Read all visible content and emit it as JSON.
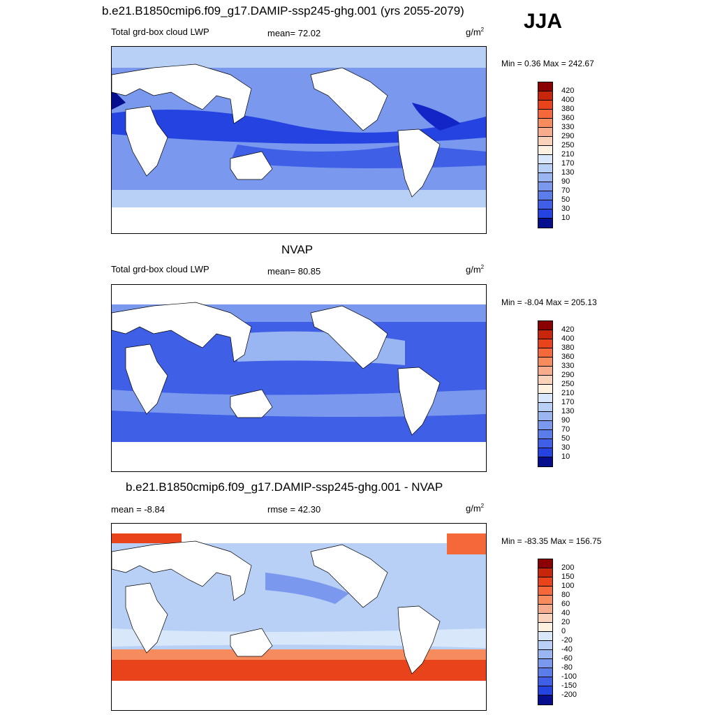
{
  "season": "JJA",
  "units_label": "g/m",
  "units_sup": "2",
  "panels": [
    {
      "title": "b.e21.B1850cmip6.f09_g17.DAMIP-ssp245-ghg.001 (yrs 2055-2079)",
      "left_label": "Total grd-box cloud LWP",
      "center_label": "mean=  72.02",
      "minmax": "Min =   0.36 Max = 242.67",
      "colorbar": {
        "colors": [
          "#8b0000",
          "#c8260a",
          "#e8431a",
          "#f4683a",
          "#f68b5e",
          "#f7ad8d",
          "#fad2ba",
          "#fff0e0",
          "#d8e8fa",
          "#b8cff6",
          "#9ab6f2",
          "#7a99ee",
          "#5a7de9",
          "#3f5fe6",
          "#2443e0",
          "#1226c8",
          "#050e8c"
        ],
        "labels": [
          "420",
          "400",
          "380",
          "360",
          "330",
          "290",
          "250",
          "210",
          "170",
          "130",
          "90",
          "70",
          "50",
          "30",
          "10"
        ]
      }
    },
    {
      "title": "NVAP",
      "left_label": "Total grd-box cloud LWP",
      "center_label": "mean=  80.85",
      "minmax": "Min =  -8.04 Max = 205.13",
      "colorbar": {
        "colors": [
          "#8b0000",
          "#c8260a",
          "#e8431a",
          "#f4683a",
          "#f68b5e",
          "#f7ad8d",
          "#fad2ba",
          "#fff0e0",
          "#d8e8fa",
          "#b8cff6",
          "#9ab6f2",
          "#7a99ee",
          "#5a7de9",
          "#3f5fe6",
          "#2443e0",
          "#1226c8",
          "#050e8c"
        ],
        "labels": [
          "420",
          "400",
          "380",
          "360",
          "330",
          "290",
          "250",
          "210",
          "170",
          "130",
          "90",
          "70",
          "50",
          "30",
          "10"
        ]
      }
    },
    {
      "title": "b.e21.B1850cmip6.f09_g17.DAMIP-ssp245-ghg.001 - NVAP",
      "left_label": "mean =  -8.84",
      "center_label": "rmse =  42.30",
      "minmax": "Min = -83.35 Max = 156.75",
      "colorbar": {
        "colors": [
          "#8b0000",
          "#c8260a",
          "#e8431a",
          "#f4683a",
          "#f68b5e",
          "#f7ad8d",
          "#fad2ba",
          "#fff0e0",
          "#d8e8fa",
          "#b8cff6",
          "#9ab6f2",
          "#7a99ee",
          "#5a7de9",
          "#3f5fe6",
          "#2443e0",
          "#1226c8",
          "#050e8c"
        ],
        "labels": [
          "200",
          "150",
          "100",
          "80",
          "60",
          "40",
          "20",
          "0",
          "-20",
          "-40",
          "-60",
          "-80",
          "-100",
          "-150",
          "-200"
        ]
      }
    }
  ]
}
